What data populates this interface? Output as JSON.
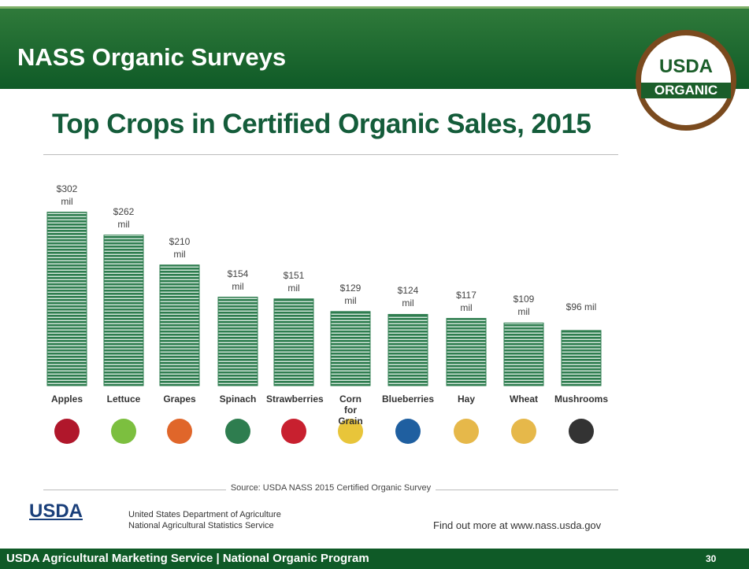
{
  "slide": {
    "title": "NASS Organic Surveys",
    "badge_top": "USDA",
    "badge_bottom": "ORGANIC",
    "footer": "USDA Agricultural Marketing Service | National Organic Program",
    "page_number": "30"
  },
  "chart_data": {
    "type": "bar",
    "title": "Top Crops in Certified Organic Sales, 2015",
    "categories": [
      "Apples",
      "Lettuce",
      "Grapes",
      "Spinach",
      "Strawberries",
      "Corn for Grain",
      "Blueberries",
      "Hay",
      "Wheat",
      "Mushrooms"
    ],
    "values": [
      302,
      262,
      210,
      154,
      151,
      129,
      124,
      117,
      109,
      96
    ],
    "value_labels": [
      "$302 mil",
      "$262 mil",
      "$210 mil",
      "$154 mil",
      "$151 mil",
      "$129 mil",
      "$124 mil",
      "$117 mil",
      "$109 mil",
      "$96 mil"
    ],
    "color": "#2e7d4f",
    "source": "Source: USDA NASS 2015 Certified Organic Survey"
  },
  "credits": {
    "logo": "USDA",
    "agency_line1": "United States Department of Agriculture",
    "agency_line2": "National Agricultural Statistics Service",
    "more_info": "Find out more at www.nass.usda.gov"
  }
}
